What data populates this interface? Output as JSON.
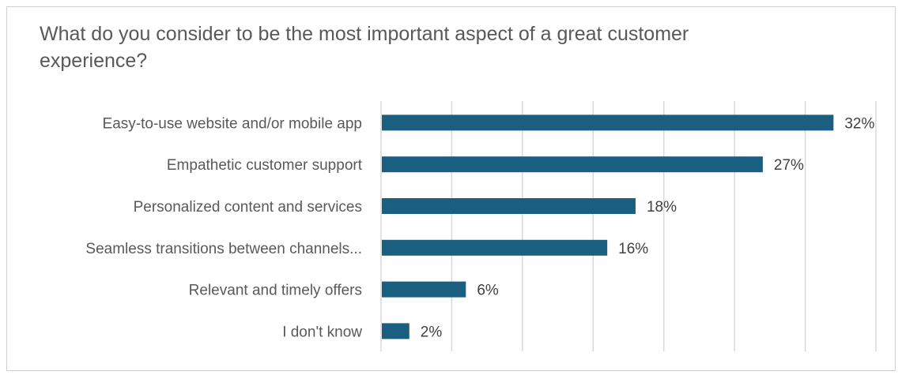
{
  "chart_data": {
    "type": "bar",
    "orientation": "horizontal",
    "title": "What do you consider to be the most important aspect of a great customer experience?",
    "categories": [
      "Easy-to-use website and/or mobile app",
      "Empathetic customer support",
      "Personalized content and services",
      "Seamless transitions between channels...",
      "Relevant and timely offers",
      "I don't know"
    ],
    "values": [
      32,
      27,
      18,
      16,
      6,
      2
    ],
    "data_labels": [
      "32%",
      "27%",
      "18%",
      "16%",
      "6%",
      "2%"
    ],
    "unit": "%",
    "xlim": [
      0,
      35
    ],
    "grid_step": 5,
    "grid": true,
    "axis_tick_labels_shown": false,
    "legend": "none",
    "colors": {
      "bar": "#1b5f80",
      "grid": "#d9d9d9",
      "text": "#595959",
      "label": "#404040"
    }
  }
}
